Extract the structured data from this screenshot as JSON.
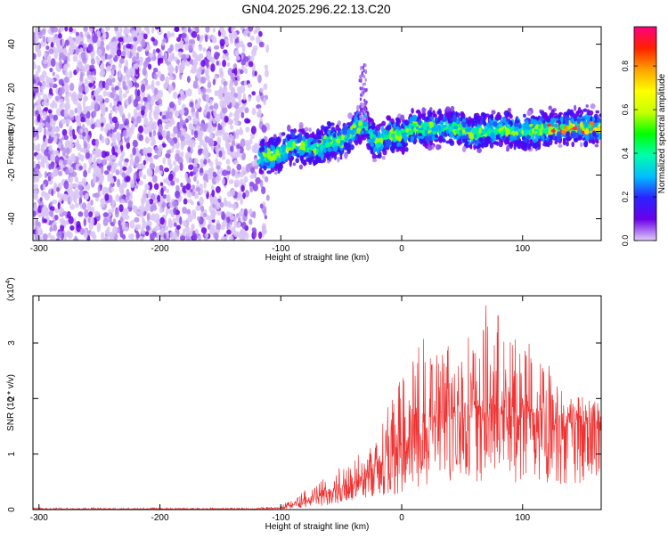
{
  "title": "GN04.2025.296.22.13.C20",
  "chart_data": [
    {
      "type": "heatmap",
      "name": "spectrogram",
      "xlabel": "Height of straight line (km)",
      "ylabel": "Frequency (Hz)",
      "xlim": [
        -305,
        165
      ],
      "ylim": [
        -50,
        48
      ],
      "xticks": [
        -300,
        -200,
        -100,
        0,
        100
      ],
      "yticks": [
        -40,
        -20,
        0,
        20,
        40
      ],
      "colorbar": {
        "label": "Normalized spectral amplitude",
        "range": [
          0,
          0.98
        ],
        "ticks": [
          "0.0",
          "0.2",
          "0.4",
          "0.6",
          "0.8"
        ],
        "colors": [
          "#e0ccf8",
          "#6a00e8",
          "#2a22ff",
          "#00bfff",
          "#00ffaa",
          "#00ff00",
          "#c8ff00",
          "#ffff00",
          "#ffa000",
          "#ff2000",
          "#ff0080"
        ]
      },
      "ridge": {
        "height_km": [
          -115,
          -100,
          -90,
          -80,
          -70,
          -60,
          -50,
          -40,
          -35,
          -30,
          -25,
          -20,
          -10,
          0,
          10,
          20,
          40,
          60,
          80,
          100,
          120,
          140,
          160
        ],
        "frequency_hz": [
          -12,
          -10,
          -6,
          -7,
          -8,
          -4,
          -5,
          0,
          3,
          4,
          -3,
          -5,
          -1,
          -2,
          2,
          1,
          2,
          -1,
          1,
          0,
          1,
          2,
          2
        ]
      }
    },
    {
      "type": "line",
      "name": "snr",
      "xlabel": "Height of straight line (km)",
      "ylabel": "SNR (10 * v/v)",
      "multiplier": "(x10",
      "multiplier_exp": "4",
      "xlim": [
        -305,
        165
      ],
      "ylim": [
        0,
        3.85
      ],
      "xticks": [
        -300,
        -200,
        -100,
        0,
        100
      ],
      "yticks": [
        0,
        1,
        2,
        3
      ],
      "color": "#ee3333",
      "envelope": {
        "height_km": [
          -305,
          -120,
          -100,
          -80,
          -60,
          -40,
          -30,
          -20,
          -10,
          0,
          10,
          20,
          30,
          40,
          50,
          60,
          70,
          80,
          90,
          100,
          110,
          120,
          130,
          135,
          140,
          150,
          165
        ],
        "mean": [
          0.01,
          0.01,
          0.03,
          0.12,
          0.28,
          0.45,
          0.6,
          0.75,
          0.9,
          1.0,
          1.15,
          1.35,
          1.5,
          1.6,
          1.65,
          1.65,
          1.7,
          1.7,
          1.65,
          1.6,
          1.55,
          1.55,
          1.5,
          1.5,
          1.55,
          1.55,
          1.5
        ],
        "peak": [
          0.03,
          0.03,
          0.08,
          0.35,
          0.7,
          0.95,
          1.05,
          1.55,
          2.2,
          2.4,
          2.8,
          3.15,
          2.95,
          3.15,
          3.0,
          3.3,
          3.7,
          3.6,
          3.1,
          3.2,
          3.05,
          2.7,
          2.6,
          1.75,
          2.1,
          2.15,
          1.95
        ]
      }
    }
  ]
}
